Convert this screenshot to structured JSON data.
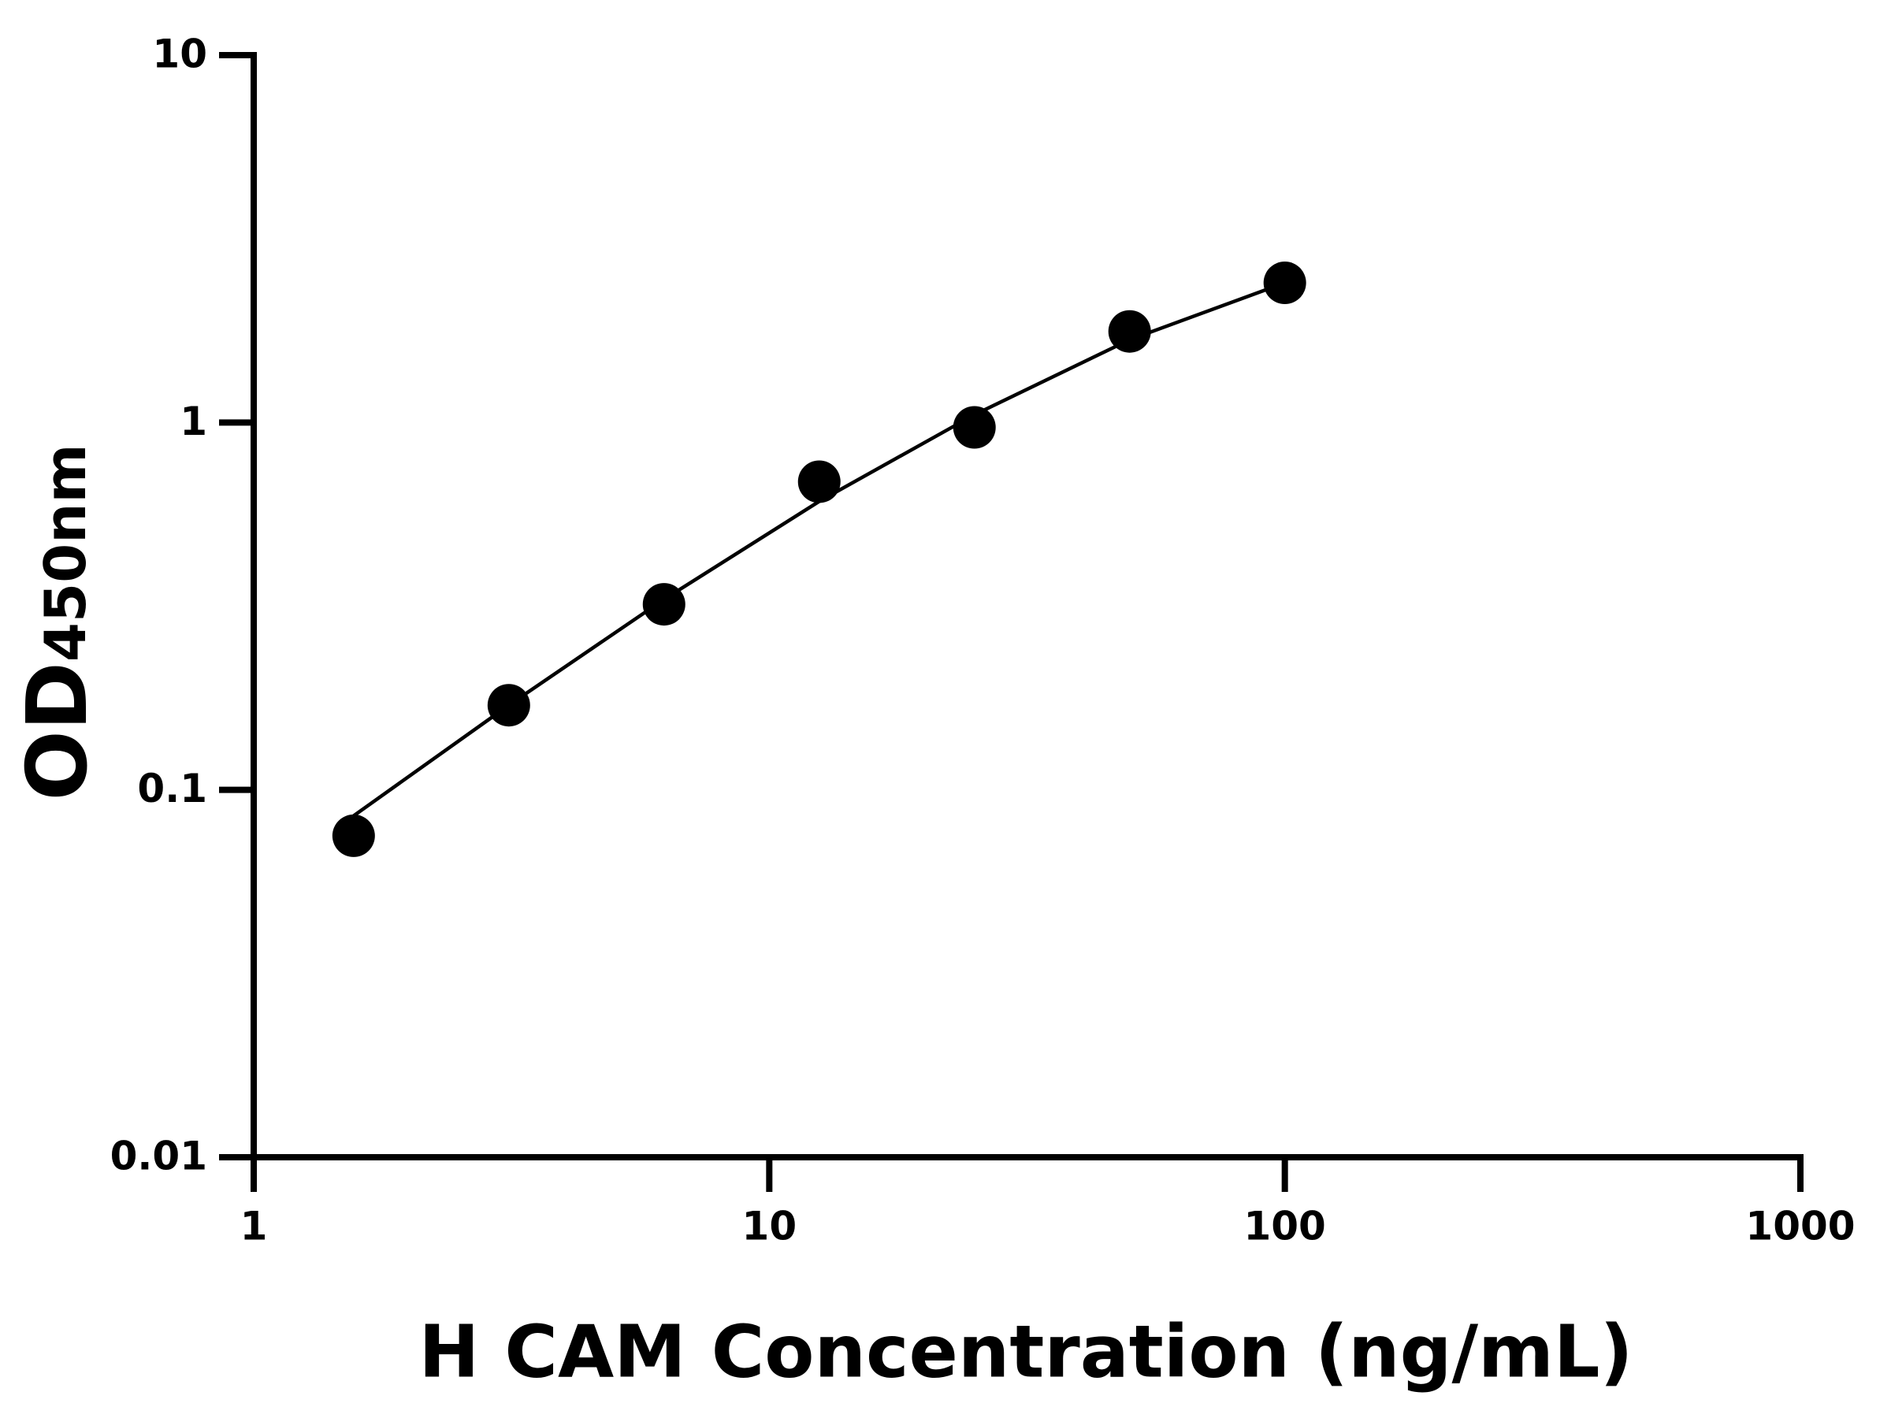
{
  "chart_data": {
    "type": "scatter",
    "xlabel": "H CAM Concentration (ng/mL)",
    "ylabel": "OD",
    "ylabel_subscript": "450nm",
    "x": [
      1.5625,
      3.125,
      6.25,
      12.5,
      25,
      50,
      100
    ],
    "series": [
      {
        "mode": "markers",
        "color": "#000000",
        "values": [
          0.075,
          0.17,
          0.32,
          0.69,
          0.97,
          1.77,
          2.4
        ]
      },
      {
        "mode": "line",
        "color": "#000000",
        "values": [
          0.085,
          0.17,
          0.33,
          0.61,
          1.05,
          1.68,
          2.4
        ]
      }
    ],
    "xscale": "log",
    "yscale": "log",
    "xlim": [
      1,
      1000
    ],
    "ylim": [
      0.01,
      10
    ],
    "xticks": [
      1,
      10,
      100,
      1000
    ],
    "yticks": [
      0.01,
      0.1,
      1,
      10
    ],
    "grid": false
  }
}
